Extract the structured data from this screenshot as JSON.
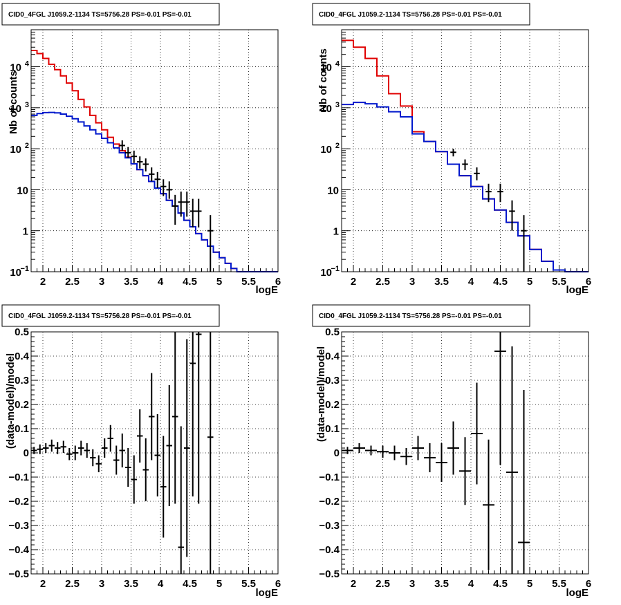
{
  "colors": {
    "data": "#000000",
    "total_model": "#e00000",
    "source_model": "#0018cc",
    "grid": "#000000"
  },
  "chart_data": [
    {
      "type": "line",
      "title": "CID0_4FGL J1059.2-1134 TS=5756.28 PS=-0.01 PS=-0.01",
      "xlabel": "logE",
      "ylabel": "Nb of counts",
      "xlim": [
        1.8,
        6.0
      ],
      "ylim": [
        0.1,
        80000
      ],
      "yscale": "log",
      "grid": true,
      "x_ticks": [
        "2",
        "2.5",
        "3",
        "3.5",
        "4",
        "4.5",
        "5",
        "5.5",
        "6"
      ],
      "y_ticks": [
        {
          "value": 0.1,
          "label": "10",
          "sup": "−1"
        },
        {
          "value": 1,
          "label": "1",
          "sup": ""
        },
        {
          "value": 10,
          "label": "10",
          "sup": ""
        },
        {
          "value": 100,
          "label": "10",
          "sup": "2"
        },
        {
          "value": 1000,
          "label": "10",
          "sup": "3"
        },
        {
          "value": 10000,
          "label": "10",
          "sup": "4"
        }
      ],
      "bin_edges": [
        1.8,
        1.9,
        2.0,
        2.1,
        2.2,
        2.3,
        2.4,
        2.5,
        2.6,
        2.7,
        2.8,
        2.9,
        3.0,
        3.1,
        3.2,
        3.3,
        3.4,
        3.5,
        3.6,
        3.7,
        3.8,
        3.9,
        4.0,
        4.1,
        4.2,
        4.3,
        4.4,
        4.5,
        4.6,
        4.7,
        4.8,
        4.9,
        5.0,
        5.1,
        5.2,
        5.3,
        5.4,
        5.5,
        5.6,
        5.7,
        5.8,
        5.9,
        6.0
      ],
      "series": [
        {
          "role": "total_model",
          "values": [
            25000,
            21000,
            16000,
            11500,
            8500,
            6000,
            4000,
            2600,
            1600,
            1050,
            650,
            430,
            290,
            190,
            130,
            90,
            62,
            43,
            31,
            22,
            16,
            11,
            8,
            5.5,
            4,
            2.7,
            1.8,
            1.25,
            0.85,
            0.6,
            0.42,
            0.3,
            0.22,
            0.16,
            0.12,
            0.1,
            0.09,
            0.09,
            0.09,
            0.09,
            0.09,
            0.09
          ]
        },
        {
          "role": "source_model",
          "values": [
            650,
            720,
            760,
            770,
            750,
            700,
            620,
            540,
            450,
            360,
            290,
            230,
            180,
            140,
            105,
            80,
            60,
            43,
            31,
            22,
            16,
            11,
            8,
            5.5,
            4,
            2.7,
            1.8,
            1.25,
            0.85,
            0.6,
            0.42,
            0.3,
            0.22,
            0.16,
            0.12,
            0.1,
            0.09,
            0.09,
            0.09,
            0.09,
            0.09,
            0.09
          ]
        }
      ],
      "points": [
        {
          "x": 3.35,
          "y": 120,
          "lo": 90,
          "hi": 160
        },
        {
          "x": 3.45,
          "y": 80,
          "lo": 60,
          "hi": 110
        },
        {
          "x": 3.55,
          "y": 65,
          "lo": 45,
          "hi": 90
        },
        {
          "x": 3.65,
          "y": 48,
          "lo": 33,
          "hi": 65
        },
        {
          "x": 3.75,
          "y": 42,
          "lo": 28,
          "hi": 58
        },
        {
          "x": 3.85,
          "y": 24,
          "lo": 16,
          "hi": 35
        },
        {
          "x": 3.95,
          "y": 18,
          "lo": 11,
          "hi": 27
        },
        {
          "x": 4.05,
          "y": 12,
          "lo": 7,
          "hi": 18
        },
        {
          "x": 4.15,
          "y": 10,
          "lo": 6,
          "hi": 16
        },
        {
          "x": 4.25,
          "y": 4,
          "lo": 1.4,
          "hi": 7.5
        },
        {
          "x": 4.35,
          "y": 5,
          "lo": 2.2,
          "hi": 9
        },
        {
          "x": 4.45,
          "y": 5,
          "lo": 2.2,
          "hi": 9
        },
        {
          "x": 4.55,
          "y": 3,
          "lo": 1.2,
          "hi": 6
        },
        {
          "x": 4.65,
          "y": 3,
          "lo": 1.2,
          "hi": 6
        },
        {
          "x": 4.85,
          "y": 1,
          "lo": 0.1,
          "hi": 2.4
        }
      ]
    },
    {
      "type": "line",
      "title": "CID0_4FGL J1059.2-1134 TS=5756.28 PS=-0.01 PS=-0.01",
      "xlabel": "logE",
      "ylabel": "Nb of counts",
      "xlim": [
        1.8,
        6.0
      ],
      "ylim": [
        0.1,
        80000
      ],
      "yscale": "log",
      "grid": true,
      "x_ticks": [
        "2",
        "2.5",
        "3",
        "3.5",
        "4",
        "4.5",
        "5",
        "5.5",
        "6"
      ],
      "y_ticks": [
        {
          "value": 0.1,
          "label": "10",
          "sup": "−1"
        },
        {
          "value": 1,
          "label": "1",
          "sup": ""
        },
        {
          "value": 10,
          "label": "10",
          "sup": ""
        },
        {
          "value": 100,
          "label": "10",
          "sup": "2"
        },
        {
          "value": 1000,
          "label": "10",
          "sup": "3"
        },
        {
          "value": 10000,
          "label": "10",
          "sup": "4"
        }
      ],
      "bin_edges": [
        1.8,
        2.0,
        2.2,
        2.4,
        2.6,
        2.8,
        3.0,
        3.2,
        3.4,
        3.6,
        3.8,
        4.0,
        4.2,
        4.4,
        4.6,
        4.8,
        5.0,
        5.2,
        5.4,
        5.6,
        5.8,
        6.0
      ],
      "series": [
        {
          "role": "total_model",
          "values": [
            44000,
            30000,
            16000,
            6000,
            2200,
            1100,
            260,
            150,
            85,
            42,
            22,
            12,
            6,
            3.2,
            1.6,
            0.75,
            0.35,
            0.18,
            0.11,
            0.09,
            0.09
          ]
        },
        {
          "role": "source_model",
          "values": [
            1200,
            1350,
            1250,
            1050,
            800,
            600,
            230,
            150,
            85,
            42,
            22,
            12,
            6,
            3.2,
            1.6,
            0.75,
            0.35,
            0.18,
            0.11,
            0.09,
            0.09
          ]
        }
      ],
      "points": [
        {
          "x": 3.7,
          "y": 82,
          "lo": 65,
          "hi": 100
        },
        {
          "x": 3.9,
          "y": 42,
          "lo": 30,
          "hi": 55
        },
        {
          "x": 4.1,
          "y": 25,
          "lo": 17,
          "hi": 35
        },
        {
          "x": 4.3,
          "y": 9,
          "lo": 5,
          "hi": 14
        },
        {
          "x": 4.5,
          "y": 9,
          "lo": 5,
          "hi": 14
        },
        {
          "x": 4.7,
          "y": 3,
          "lo": 1,
          "hi": 5.5
        },
        {
          "x": 4.9,
          "y": 1,
          "lo": 0.1,
          "hi": 2.4
        }
      ]
    },
    {
      "type": "scatter",
      "title": "CID0_4FGL J1059.2-1134 TS=5756.28 PS=-0.01 PS=-0.01",
      "xlabel": "logE",
      "ylabel": "(data-model)/model",
      "xlim": [
        1.8,
        6.0
      ],
      "ylim": [
        -0.5,
        0.5
      ],
      "yscale": "linear",
      "grid": true,
      "x_ticks": [
        "2",
        "2.5",
        "3",
        "3.5",
        "4",
        "4.5",
        "5",
        "5.5",
        "6"
      ],
      "y_ticks": [
        "−0.5",
        "−0.4",
        "−0.3",
        "−0.2",
        "−0.1",
        "0",
        "0.1",
        "0.2",
        "0.3",
        "0.4",
        "0.5"
      ],
      "half_width": 0.05,
      "points": [
        {
          "x": 1.85,
          "y": 0.01,
          "err": 0.015
        },
        {
          "x": 1.95,
          "y": 0.015,
          "err": 0.02
        },
        {
          "x": 2.05,
          "y": 0.02,
          "err": 0.02
        },
        {
          "x": 2.15,
          "y": 0.03,
          "err": 0.025
        },
        {
          "x": 2.25,
          "y": 0.02,
          "err": 0.025
        },
        {
          "x": 2.35,
          "y": 0.025,
          "err": 0.025
        },
        {
          "x": 2.45,
          "y": -0.005,
          "err": 0.025
        },
        {
          "x": 2.55,
          "y": 0.0,
          "err": 0.03
        },
        {
          "x": 2.65,
          "y": 0.02,
          "err": 0.03
        },
        {
          "x": 2.75,
          "y": 0.01,
          "err": 0.03
        },
        {
          "x": 2.85,
          "y": -0.02,
          "err": 0.035
        },
        {
          "x": 2.95,
          "y": -0.045,
          "err": 0.035
        },
        {
          "x": 3.05,
          "y": 0.02,
          "err": 0.04
        },
        {
          "x": 3.15,
          "y": 0.06,
          "err": 0.055
        },
        {
          "x": 3.25,
          "y": -0.03,
          "err": 0.06
        },
        {
          "x": 3.35,
          "y": 0.01,
          "err": 0.07
        },
        {
          "x": 3.45,
          "y": -0.06,
          "err": 0.08
        },
        {
          "x": 3.55,
          "y": -0.11,
          "err": 0.1
        },
        {
          "x": 3.65,
          "y": 0.07,
          "err": 0.11
        },
        {
          "x": 3.75,
          "y": -0.07,
          "err": 0.13
        },
        {
          "x": 3.85,
          "y": 0.15,
          "err": 0.18
        },
        {
          "x": 3.95,
          "y": -0.01,
          "err": 0.17
        },
        {
          "x": 4.05,
          "y": -0.14,
          "err": 0.21
        },
        {
          "x": 4.15,
          "y": 0.03,
          "err": 0.25
        },
        {
          "x": 4.25,
          "y": 0.15,
          "err": 0.36
        },
        {
          "x": 4.35,
          "y": -0.39,
          "err": 0.5
        },
        {
          "x": 4.45,
          "y": 0.02,
          "err": 0.45
        },
        {
          "x": 4.55,
          "y": 0.37,
          "err": 0.55
        },
        {
          "x": 4.65,
          "y": 0.49,
          "err": 0.7
        },
        {
          "x": 4.85,
          "y": 0.065,
          "err": 0.7
        }
      ]
    },
    {
      "type": "scatter",
      "title": "CID0_4FGL J1059.2-1134 TS=5756.28 PS=-0.01 PS=-0.01",
      "xlabel": "logE",
      "ylabel": "(data-model)/model",
      "xlim": [
        1.8,
        6.0
      ],
      "ylim": [
        -0.5,
        0.5
      ],
      "yscale": "linear",
      "grid": true,
      "x_ticks": [
        "2",
        "2.5",
        "3",
        "3.5",
        "4",
        "4.5",
        "5",
        "5.5",
        "6"
      ],
      "y_ticks": [
        "−0.5",
        "−0.4",
        "−0.3",
        "−0.2",
        "−0.1",
        "0",
        "0.1",
        "0.2",
        "0.3",
        "0.4",
        "0.5"
      ],
      "half_width": 0.1,
      "points": [
        {
          "x": 1.9,
          "y": 0.01,
          "err": 0.015
        },
        {
          "x": 2.1,
          "y": 0.02,
          "err": 0.02
        },
        {
          "x": 2.3,
          "y": 0.01,
          "err": 0.02
        },
        {
          "x": 2.5,
          "y": 0.005,
          "err": 0.025
        },
        {
          "x": 2.7,
          "y": 0.0,
          "err": 0.03
        },
        {
          "x": 2.9,
          "y": -0.015,
          "err": 0.035
        },
        {
          "x": 3.1,
          "y": 0.02,
          "err": 0.05
        },
        {
          "x": 3.3,
          "y": -0.02,
          "err": 0.06
        },
        {
          "x": 3.5,
          "y": -0.04,
          "err": 0.08
        },
        {
          "x": 3.7,
          "y": 0.02,
          "err": 0.11
        },
        {
          "x": 3.9,
          "y": -0.075,
          "err": 0.14
        },
        {
          "x": 4.1,
          "y": 0.08,
          "err": 0.21
        },
        {
          "x": 4.3,
          "y": -0.215,
          "err": 0.27
        },
        {
          "x": 4.5,
          "y": 0.42,
          "err": 0.47
        },
        {
          "x": 4.7,
          "y": -0.08,
          "err": 0.52
        },
        {
          "x": 4.9,
          "y": -0.37,
          "err": 0.63
        }
      ]
    }
  ]
}
